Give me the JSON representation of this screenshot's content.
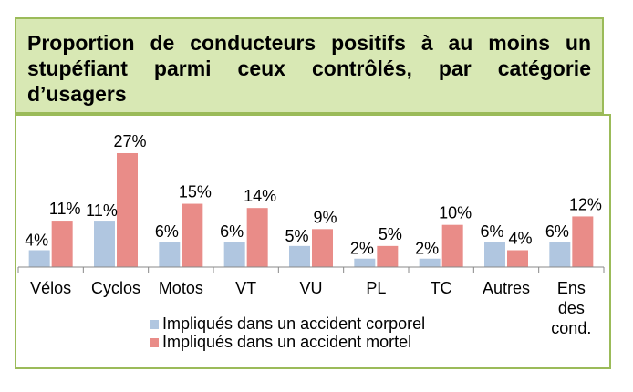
{
  "title": "Proportion de conducteurs positifs à au moins un stupéfiant parmi ceux contrôlés, par catégorie d’usagers",
  "colors": {
    "series1": "#b0c6e0",
    "series2": "#e98c88",
    "border": "#9bbb59",
    "title_bg": "#d8e8b4"
  },
  "chart_data": {
    "type": "bar",
    "title": "Proportion de conducteurs positifs à au moins un stupéfiant parmi ceux contrôlés, par catégorie d’usagers",
    "categories": [
      "Vélos",
      "Cyclos",
      "Motos",
      "VT",
      "VU",
      "PL",
      "TC",
      "Autres",
      "Ens des cond."
    ],
    "series": [
      {
        "name": "Impliqués dans un accident corporel",
        "values": [
          4,
          11,
          6,
          6,
          5,
          2,
          2,
          6,
          6
        ],
        "labels": [
          "4%",
          "11%",
          "6%",
          "6%",
          "5%",
          "2%",
          "2%",
          "6%",
          "6%"
        ]
      },
      {
        "name": "Impliqués dans un accident mortel",
        "values": [
          11,
          27,
          15,
          14,
          9,
          5,
          10,
          4,
          12
        ],
        "labels": [
          "11%",
          "27%",
          "15%",
          "14%",
          "9%",
          "5%",
          "10%",
          "4%",
          "12%"
        ]
      }
    ],
    "ylim": [
      0,
      30
    ],
    "grid": false,
    "legend": "bottom-left"
  }
}
